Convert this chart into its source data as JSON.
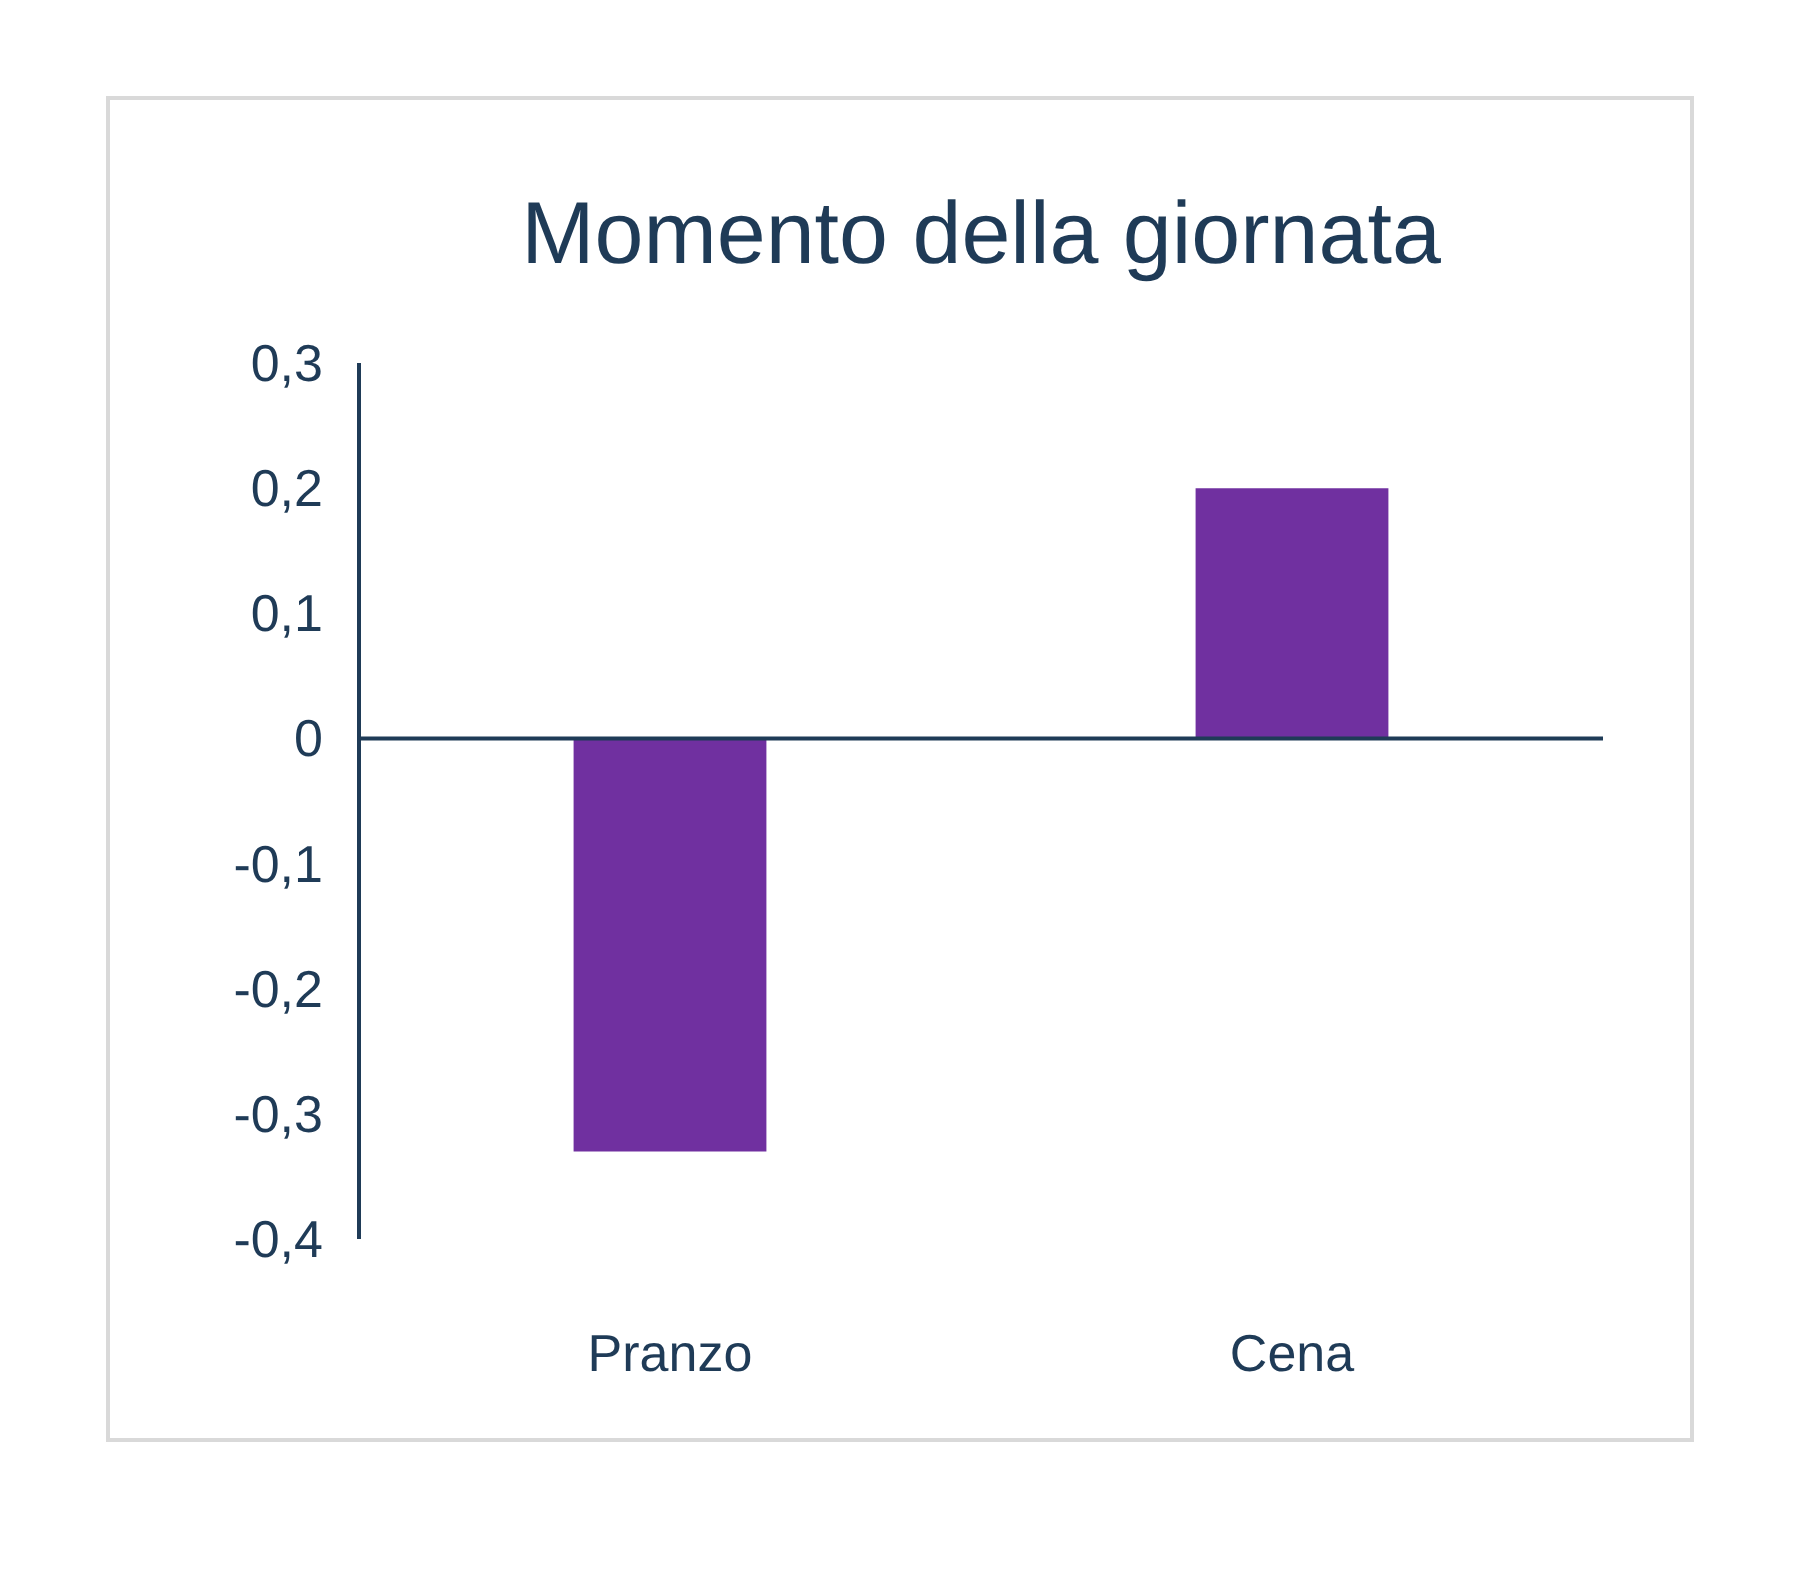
{
  "chart_data": {
    "type": "bar",
    "title": "Momento della giornata",
    "categories": [
      "Pranzo",
      "Cena"
    ],
    "values": [
      -0.33,
      0.2
    ],
    "color": "#7030a0",
    "ylim": [
      -0.4,
      0.3
    ],
    "yticks": [
      {
        "value": -0.4,
        "label": "-0,4"
      },
      {
        "value": -0.3,
        "label": "-0,3"
      },
      {
        "value": -0.2,
        "label": "-0,2"
      },
      {
        "value": -0.1,
        "label": "-0,1"
      },
      {
        "value": 0,
        "label": "0"
      },
      {
        "value": 0.1,
        "label": "0,1"
      },
      {
        "value": 0.2,
        "label": "0,2"
      },
      {
        "value": 0.3,
        "label": "0,3"
      }
    ],
    "grid": false
  }
}
